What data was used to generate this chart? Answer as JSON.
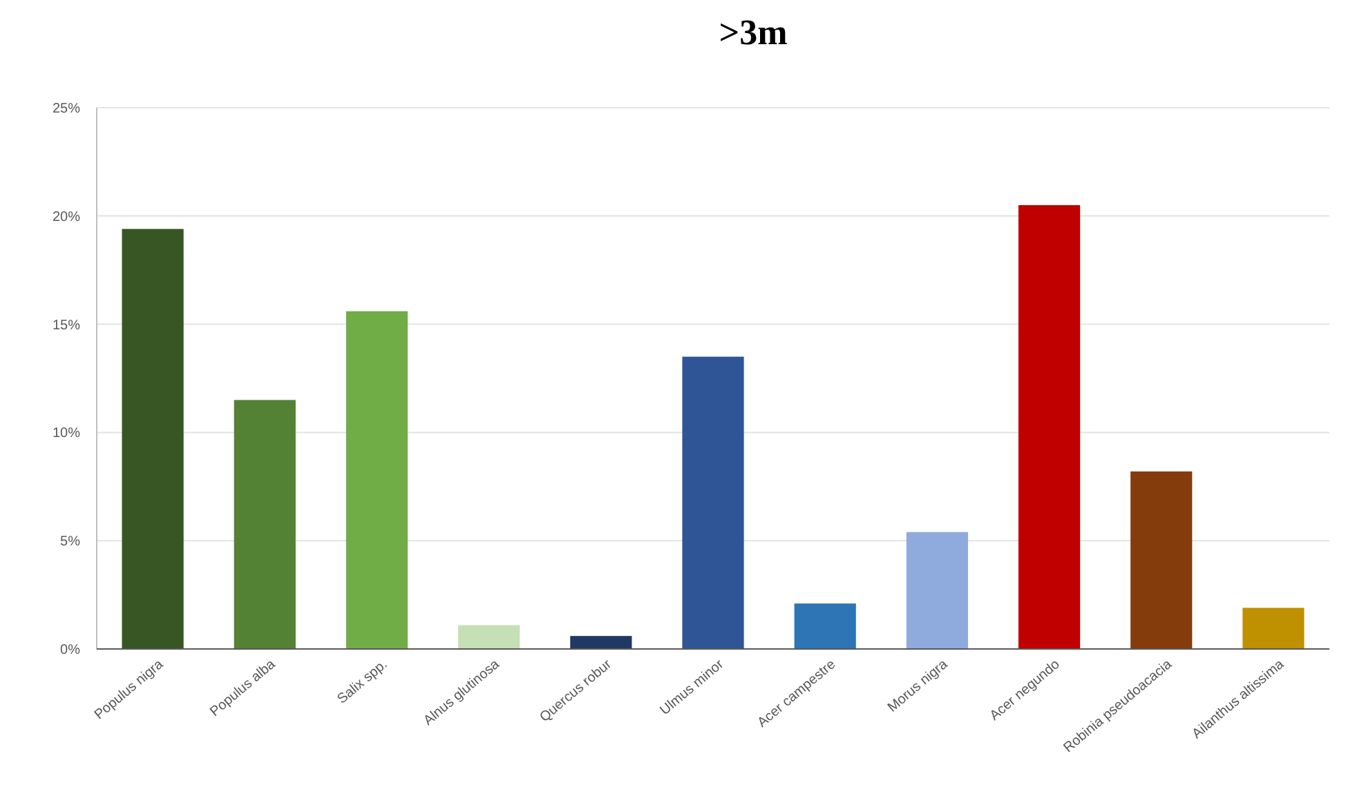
{
  "chart_data": {
    "type": "bar",
    "title": ">3m",
    "categories": [
      "Populus nigra",
      "Populus alba",
      "Salix spp.",
      "Alnus glutinosa",
      "Quercus robur",
      "Ulmus minor",
      "Acer campestre",
      "Morus nigra",
      "Acer negundo",
      "Robinia pseudoacacia",
      "Ailanthus altissima"
    ],
    "values": [
      19.4,
      11.5,
      15.6,
      1.1,
      0.6,
      13.5,
      2.1,
      5.4,
      20.5,
      8.2,
      1.9
    ],
    "colors": [
      "#375623",
      "#548235",
      "#70ad47",
      "#c5e0b4",
      "#203864",
      "#2f5597",
      "#2e75b6",
      "#8faadc",
      "#c00000",
      "#843c0c",
      "#bf9000"
    ],
    "ylim": [
      0,
      25
    ],
    "yticks": [
      {
        "value": 0,
        "label": "0%"
      },
      {
        "value": 5,
        "label": "5%"
      },
      {
        "value": 10,
        "label": "10%"
      },
      {
        "value": 15,
        "label": "15%"
      },
      {
        "value": 20,
        "label": "20%"
      },
      {
        "value": 25,
        "label": "25%"
      }
    ],
    "grid": "y"
  }
}
